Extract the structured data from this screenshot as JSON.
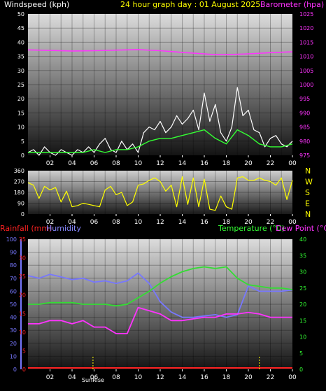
{
  "header": {
    "windspeed_label": "Windspeed (kph)",
    "title": "24 hour graph day : 01 August 2025",
    "barometer_label": "Barometer (hpa)"
  },
  "colors": {
    "wind_speed": "#ffffff",
    "wind_avg": "#33ff33",
    "barometer": "#ff33ff",
    "wind_dir": "#ffff00",
    "humidity": "#7777ff",
    "temperature": "#33dd33",
    "dew_point": "#ff33ff",
    "rainfall": "#ff2222",
    "header_wind": "#ffffff",
    "header_title": "#ffff00",
    "header_baro": "#ff33ff"
  },
  "x_ticks": [
    "02",
    "04",
    "06",
    "08",
    "10",
    "12",
    "14",
    "16",
    "18",
    "20",
    "22",
    "00"
  ],
  "sun": {
    "sunrise_label": "SunRise",
    "sunset_label": "",
    "sunrise_hour": 5.9,
    "sunset_hour": 21.0
  },
  "chart_data": [
    {
      "type": "line",
      "title": "24 hour graph day : 01 August 2025",
      "x_unit": "hours",
      "y_left": {
        "label": "Windspeed (kph)",
        "range": [
          0,
          50
        ],
        "ticks": [
          "0",
          "5",
          "10",
          "15",
          "20",
          "25",
          "30",
          "35",
          "40",
          "45",
          "50"
        ]
      },
      "y_right": {
        "label": "Barometer (hpa)",
        "range": [
          975,
          1025
        ],
        "ticks": [
          "975",
          "980",
          "985",
          "990",
          "995",
          "1000",
          "1005",
          "1010",
          "1015",
          "1020",
          "1025"
        ]
      },
      "grid": true,
      "series": [
        {
          "name": "Windspeed (kph)",
          "axis": "left",
          "x": [
            0,
            0.5,
            1,
            1.5,
            2,
            2.5,
            3,
            3.5,
            4,
            4.5,
            5,
            5.5,
            6,
            6.5,
            7,
            7.5,
            8,
            8.5,
            9,
            9.5,
            10,
            10.5,
            11,
            11.5,
            12,
            12.5,
            13,
            13.5,
            14,
            14.5,
            15,
            15.5,
            16,
            16.5,
            17,
            17.5,
            18,
            18.5,
            19,
            19.5,
            20,
            20.5,
            21,
            21.5,
            22,
            22.5,
            23,
            23.5,
            24
          ],
          "values": [
            1,
            2,
            0,
            3,
            1,
            0,
            2,
            1,
            0,
            2,
            1,
            3,
            1,
            4,
            6,
            2,
            1,
            5,
            2,
            4,
            1,
            8,
            10,
            9,
            12,
            8,
            10,
            14,
            11,
            13,
            16,
            9,
            22,
            12,
            18,
            8,
            5,
            10,
            24,
            14,
            16,
            9,
            8,
            3,
            6,
            7,
            4,
            3,
            5
          ]
        },
        {
          "name": "",
          "axis": "left",
          "x": [
            0,
            1,
            2,
            3,
            4,
            5,
            6,
            7,
            8,
            9,
            10,
            11,
            12,
            13,
            14,
            15,
            16,
            17,
            18,
            19,
            20,
            21,
            22,
            23,
            24
          ],
          "values": [
            1,
            1,
            1,
            1,
            1,
            1,
            2,
            1,
            2,
            2,
            3,
            5,
            6,
            6,
            7,
            8,
            9,
            6,
            4,
            9,
            7,
            4,
            3,
            3,
            4
          ]
        },
        {
          "name": "Barometer (hpa)",
          "axis": "right",
          "x": [
            0,
            2,
            4,
            6,
            8,
            10,
            12,
            14,
            16,
            17,
            18,
            20,
            22,
            24
          ],
          "values": [
            1012.3,
            1012.1,
            1011.9,
            1012.0,
            1012.2,
            1012.4,
            1012.0,
            1011.4,
            1010.9,
            1010.6,
            1010.6,
            1010.9,
            1011.3,
            1011.6
          ]
        }
      ]
    },
    {
      "type": "line",
      "title": "",
      "y_left": {
        "label": "",
        "range": [
          0,
          360
        ],
        "ticks": [
          "0",
          "90",
          "180",
          "270",
          "360"
        ]
      },
      "y_right_labels": [
        "N",
        "W",
        "S",
        "E",
        "N"
      ],
      "grid": true,
      "series": [
        {
          "name": "",
          "x": [
            0,
            0.5,
            1,
            1.5,
            2,
            2.5,
            3,
            3.5,
            4,
            4.5,
            5,
            5.5,
            6,
            6.5,
            7,
            7.5,
            8,
            8.5,
            9,
            9.5,
            10,
            10.5,
            11,
            11.5,
            12,
            12.5,
            13,
            13.5,
            14,
            14.5,
            15,
            15.5,
            16,
            16.5,
            17,
            17.5,
            18,
            18.5,
            19,
            19.5,
            20,
            20.5,
            21,
            21.5,
            22,
            22.5,
            23,
            23.5,
            24
          ],
          "values": [
            260,
            240,
            130,
            230,
            200,
            220,
            100,
            190,
            60,
            70,
            90,
            80,
            70,
            60,
            200,
            230,
            160,
            180,
            70,
            100,
            240,
            250,
            280,
            300,
            270,
            190,
            240,
            60,
            310,
            80,
            300,
            60,
            290,
            40,
            30,
            150,
            60,
            40,
            300,
            310,
            280,
            280,
            300,
            280,
            270,
            240,
            300,
            120,
            280
          ]
        }
      ]
    },
    {
      "type": "line",
      "title": "",
      "y_left_rain": {
        "label": "Rainfall (mm)",
        "range": [
          0,
          35
        ],
        "ticks": [
          "0",
          "5",
          "10",
          "15",
          "20",
          "25",
          "30",
          "35"
        ]
      },
      "y_left_humidity": {
        "label": "Humidity",
        "range": [
          0,
          100
        ],
        "ticks": [
          "0",
          "10",
          "20",
          "30",
          "40",
          "50",
          "60",
          "70",
          "80",
          "90",
          "100"
        ]
      },
      "y_right": {
        "label": "Temperature (°C)",
        "label2": "Dew Point (°C)",
        "range": [
          0,
          40
        ],
        "ticks": [
          "0",
          "5",
          "10",
          "15",
          "20",
          "25",
          "30",
          "35",
          "40"
        ]
      },
      "grid": true,
      "series": [
        {
          "name": "Humidity",
          "axis": "humidity",
          "x": [
            0,
            1,
            2,
            3,
            4,
            5,
            6,
            7,
            8,
            9,
            10,
            11,
            12,
            13,
            14,
            15,
            16,
            17,
            18,
            19,
            20,
            21,
            22,
            23,
            24
          ],
          "values": [
            72,
            70,
            73,
            71,
            69,
            70,
            67,
            68,
            66,
            68,
            74,
            66,
            52,
            44,
            40,
            40,
            41,
            42,
            40,
            42,
            64,
            60,
            60,
            60,
            61
          ]
        },
        {
          "name": "Temperature (°C)",
          "axis": "right",
          "x": [
            0,
            1,
            2,
            3,
            4,
            5,
            6,
            7,
            8,
            9,
            10,
            11,
            12,
            13,
            14,
            15,
            16,
            17,
            18,
            19,
            20,
            21,
            22,
            23,
            24
          ],
          "values": [
            20,
            20,
            20.5,
            20.5,
            20.5,
            20,
            20,
            20,
            19.5,
            20,
            22,
            24,
            26.5,
            28.5,
            30,
            31,
            31.5,
            31,
            31.5,
            28,
            26,
            25.5,
            25,
            25,
            24.5
          ]
        },
        {
          "name": "Dew Point (°C)",
          "axis": "right",
          "x": [
            0,
            1,
            2,
            3,
            4,
            5,
            6,
            7,
            8,
            9,
            10,
            11,
            12,
            13,
            14,
            15,
            16,
            17,
            18,
            19,
            20,
            21,
            22,
            23,
            24
          ],
          "values": [
            14,
            14,
            15,
            15,
            14,
            15,
            13,
            13,
            11,
            11,
            19,
            18,
            17,
            15,
            15,
            15.5,
            16,
            16,
            17,
            17,
            17.5,
            17,
            16,
            16,
            16
          ]
        },
        {
          "name": "Rainfall (mm)",
          "axis": "rain",
          "x": [
            0,
            24
          ],
          "values": [
            0,
            0
          ]
        }
      ]
    }
  ]
}
